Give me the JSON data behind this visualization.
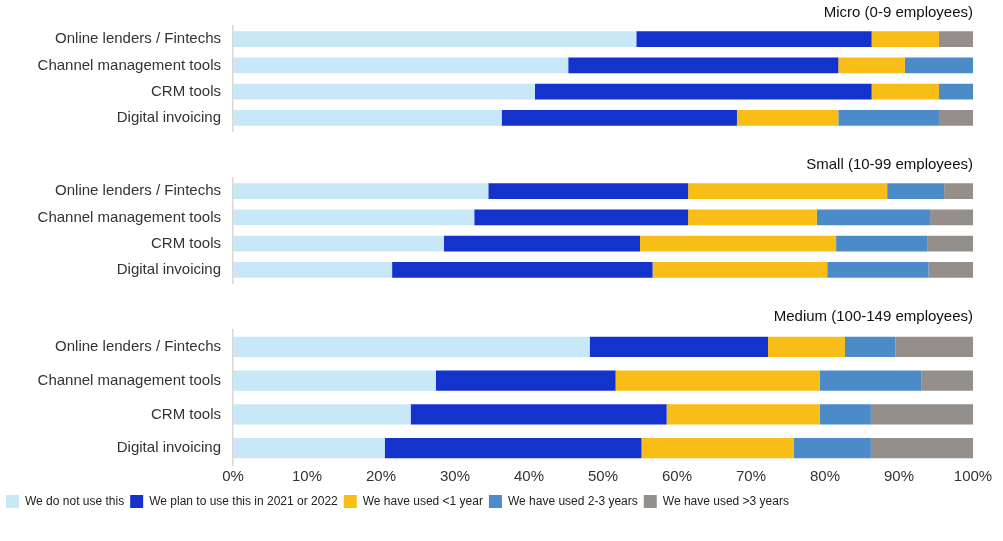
{
  "chart_data": [
    {
      "type": "bar",
      "orientation": "horizontal",
      "stacked": true,
      "title": "Micro (0-9 employees)",
      "categories": [
        "Online lenders / Fintechs",
        "Channel management tools",
        "CRM tools",
        "Digital invoicing"
      ],
      "xlim": [
        0,
        100
      ],
      "tick_labels": "y",
      "grid": false,
      "legend": false,
      "series": [
        {
          "color": "#c8e8f8",
          "values": [
            54.5,
            45.3,
            40.8,
            36.3
          ]
        },
        {
          "color": "#1432cc",
          "values": [
            31.8,
            36.5,
            45.5,
            31.8
          ]
        },
        {
          "color": "#f8bd16",
          "values": [
            9.1,
            9.0,
            9.1,
            13.7
          ]
        },
        {
          "color": "#4b8bc8",
          "values": [
            0,
            9.2,
            4.6,
            13.6
          ]
        },
        {
          "color": "#948f8b",
          "values": [
            4.6,
            0,
            0,
            4.6
          ]
        }
      ]
    },
    {
      "type": "bar",
      "orientation": "horizontal",
      "stacked": true,
      "title": "Small (10-99 employees)",
      "categories": [
        "Online lenders / Fintechs",
        "Channel management tools",
        "CRM tools",
        "Digital invoicing"
      ],
      "xlim": [
        0,
        100
      ],
      "tick_labels": "y",
      "grid": false,
      "legend": false,
      "series": [
        {
          "color": "#c8e8f8",
          "values": [
            34.5,
            32.6,
            28.5,
            21.5
          ]
        },
        {
          "color": "#1432cc",
          "values": [
            27.0,
            28.9,
            26.5,
            35.2
          ]
        },
        {
          "color": "#f8bd16",
          "values": [
            26.9,
            17.4,
            26.5,
            23.6
          ]
        },
        {
          "color": "#4b8bc8",
          "values": [
            7.7,
            15.3,
            12.3,
            13.7
          ]
        },
        {
          "color": "#948f8b",
          "values": [
            3.9,
            5.8,
            6.2,
            6.0
          ]
        }
      ]
    },
    {
      "type": "bar",
      "orientation": "horizontal",
      "stacked": true,
      "title": "Medium (100-149 employees)",
      "categories": [
        "Online lenders / Fintechs",
        "Channel management tools",
        "CRM tools",
        "Digital invoicing"
      ],
      "xlim": [
        0,
        100
      ],
      "xticks": [
        {
          "value": 0,
          "label": "0%"
        },
        {
          "value": 10,
          "label": "10%"
        },
        {
          "value": 20,
          "label": "20%"
        },
        {
          "value": 30,
          "label": "30%"
        },
        {
          "value": 40,
          "label": "40%"
        },
        {
          "value": 50,
          "label": "50%"
        },
        {
          "value": 60,
          "label": "60%"
        },
        {
          "value": 70,
          "label": "70%"
        },
        {
          "value": 80,
          "label": "80%"
        },
        {
          "value": 90,
          "label": "90%"
        },
        {
          "value": 100,
          "label": "100%"
        }
      ],
      "grid": false,
      "legend": "bottom",
      "series": [
        {
          "name": "We do not use this",
          "color": "#c8e8f8",
          "values": [
            48.2,
            27.4,
            24.0,
            20.5
          ]
        },
        {
          "name": "We plan to use this in 2021 or 2022",
          "color": "#1432cc",
          "values": [
            24.1,
            24.3,
            34.6,
            34.7
          ]
        },
        {
          "name": "We have used <1 year",
          "color": "#f8bd16",
          "values": [
            10.4,
            27.6,
            20.7,
            20.6
          ]
        },
        {
          "name": "We have used 2-3 years",
          "color": "#4b8bc8",
          "values": [
            6.8,
            13.7,
            6.9,
            10.4
          ]
        },
        {
          "name": "We have used >3 years",
          "color": "#948f8b",
          "values": [
            10.5,
            7.0,
            13.8,
            13.8
          ]
        }
      ]
    }
  ]
}
